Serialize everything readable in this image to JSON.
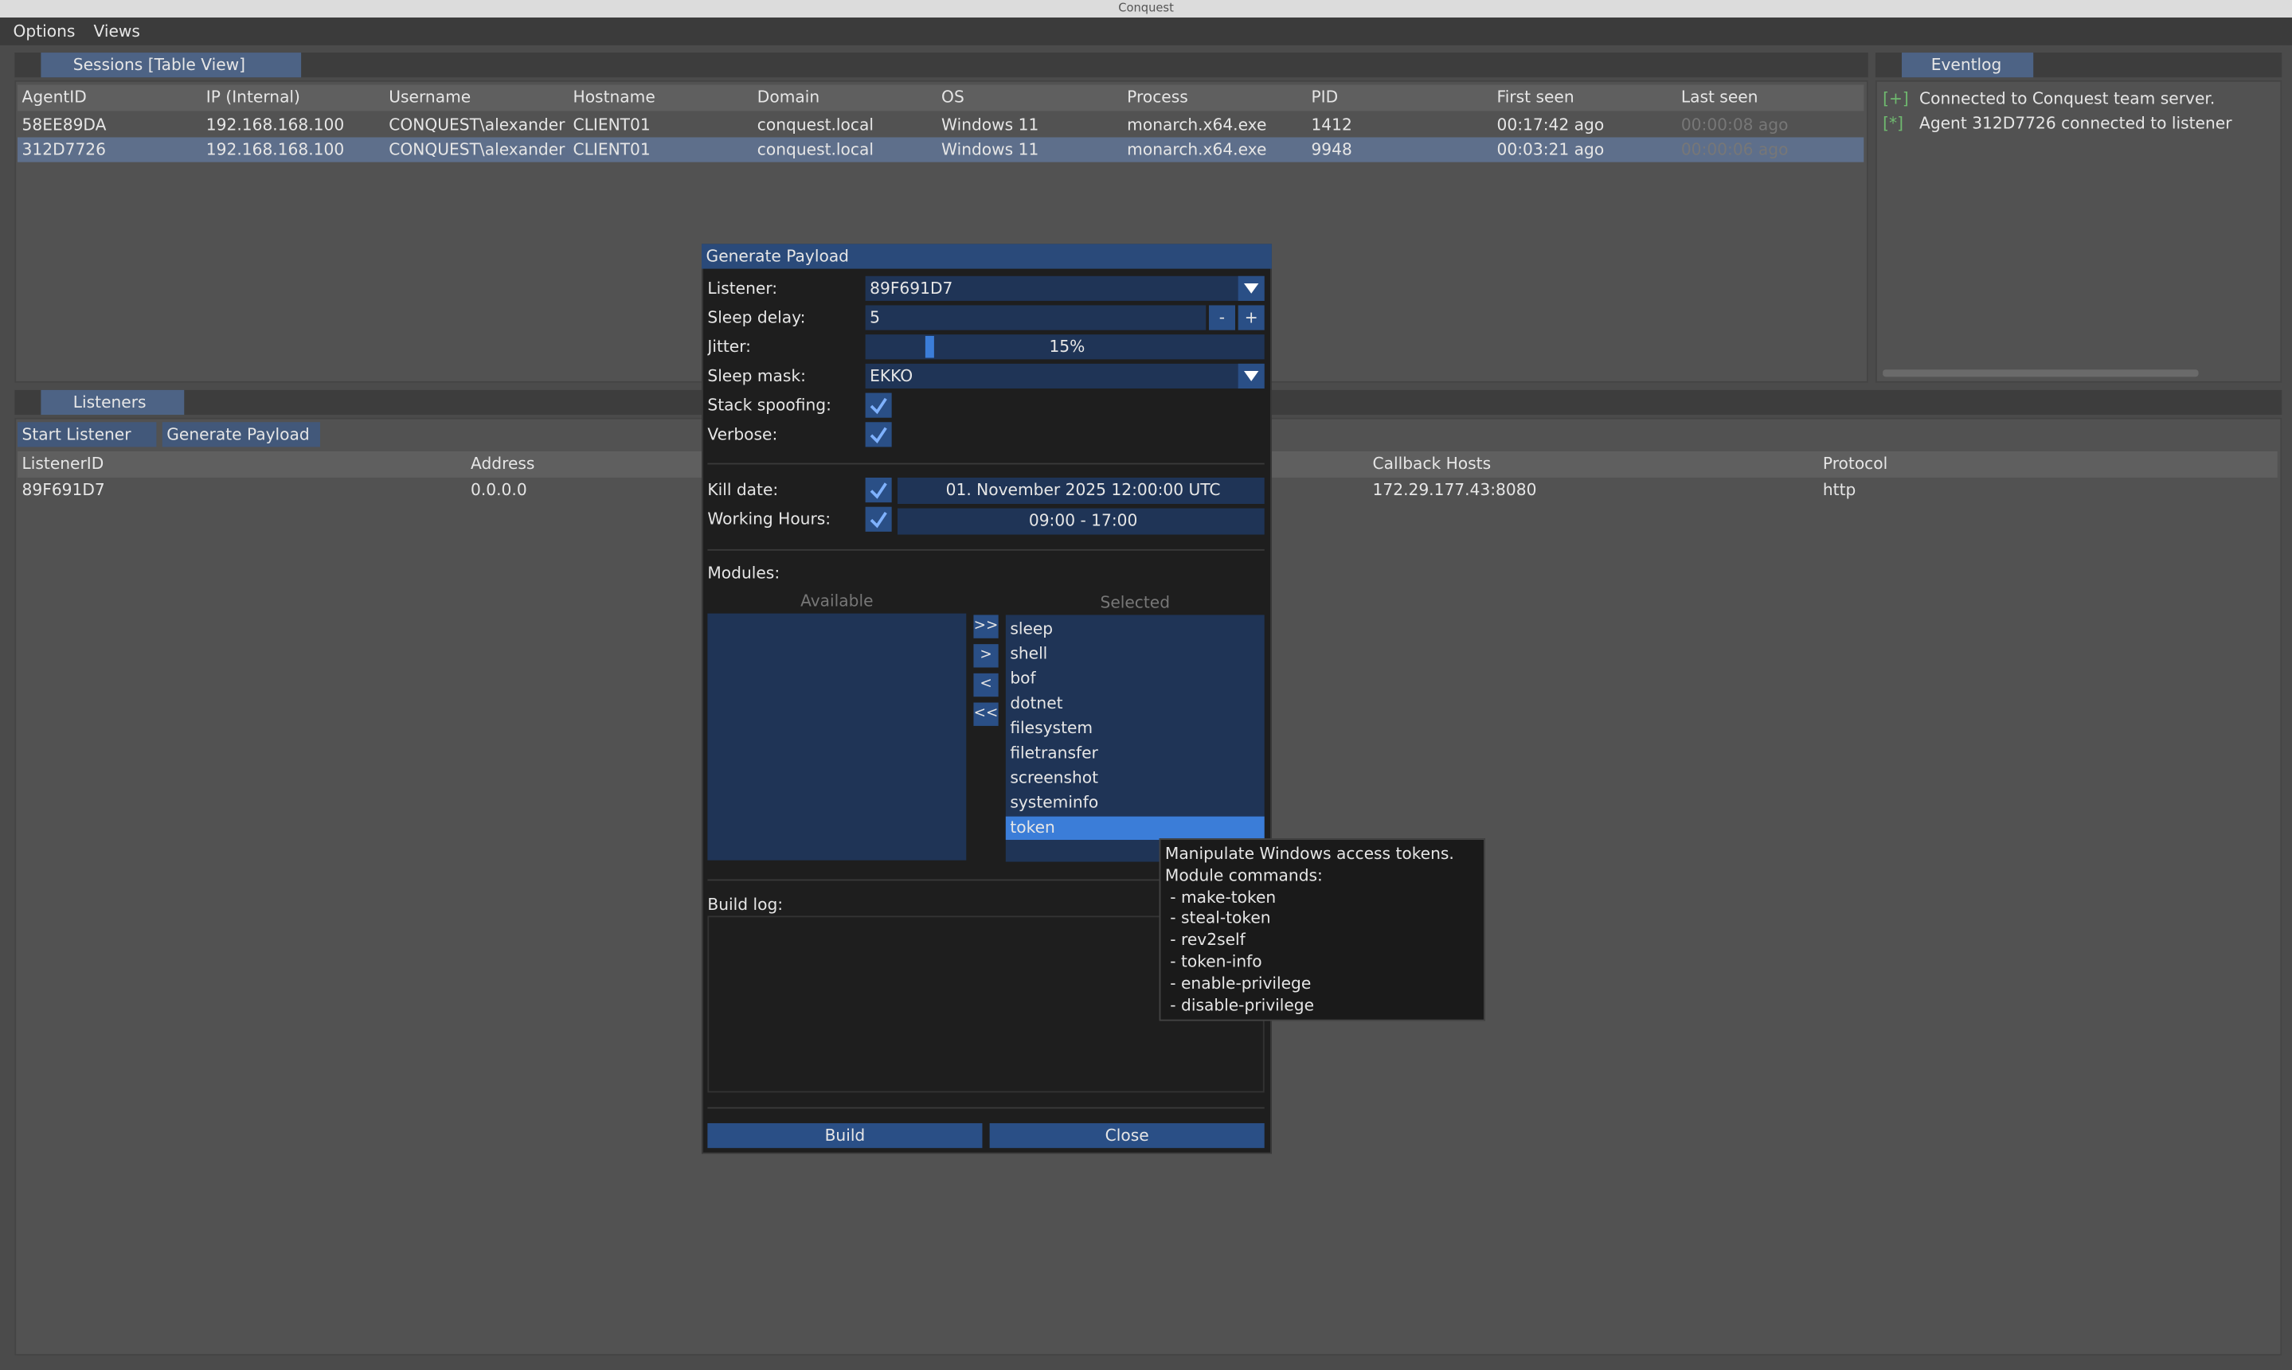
{
  "window": {
    "title": "Conquest"
  },
  "menu": [
    "Options",
    "Views"
  ],
  "sessions": {
    "tab": "Sessions [Table View]",
    "columns": [
      "AgentID",
      "IP (Internal)",
      "Username",
      "Hostname",
      "Domain",
      "OS",
      "Process",
      "PID",
      "First seen",
      "Last seen"
    ],
    "rows": [
      [
        "58EE89DA",
        "192.168.168.100",
        "CONQUEST\\alexander",
        "CLIENT01",
        "conquest.local",
        "Windows 11",
        "monarch.x64.exe",
        "1412",
        "00:17:42 ago",
        "00:00:08 ago"
      ],
      [
        "312D7726",
        "192.168.168.100",
        "CONQUEST\\alexander",
        "CLIENT01",
        "conquest.local",
        "Windows 11",
        "monarch.x64.exe",
        "9948",
        "00:03:21 ago",
        "00:00:06 ago"
      ]
    ]
  },
  "eventlog": {
    "tab": "Eventlog",
    "lines": [
      {
        "prefix": "[+]",
        "text": "Connected to Conquest team server."
      },
      {
        "prefix": "[*]",
        "text": "Agent 312D7726 connected to listener"
      }
    ]
  },
  "listeners": {
    "tab": "Listeners",
    "buttons": [
      "Start Listener",
      "Generate Payload"
    ],
    "columns": [
      "ListenerID",
      "Address",
      "Callback Hosts",
      "Protocol"
    ],
    "rows": [
      [
        "89F691D7",
        "0.0.0.0",
        "172.29.177.43:8080",
        "http"
      ]
    ]
  },
  "dialog": {
    "title": "Generate Payload",
    "listener": {
      "label": "Listener:",
      "value": "89F691D7"
    },
    "sleep_delay": {
      "label": "Sleep delay:",
      "value": "5",
      "decrement": "-",
      "increment": "+"
    },
    "jitter": {
      "label": "Jitter:",
      "value": "15%"
    },
    "sleep_mask": {
      "label": "Sleep mask:",
      "value": "EKKO"
    },
    "stack_spoofing": {
      "label": "Stack spoofing:"
    },
    "verbose": {
      "label": "Verbose:"
    },
    "kill_date": {
      "label": "Kill date:",
      "value": "01. November 2025 12:00:00 UTC"
    },
    "working_hours": {
      "label": "Working Hours:",
      "value": "09:00 - 17:00"
    },
    "modules": {
      "label": "Modules:",
      "available_label": "Available",
      "selected_label": "Selected",
      "move_buttons": [
        ">>",
        ">",
        "<",
        "<<"
      ],
      "selected": [
        "sleep",
        "shell",
        "bof",
        "dotnet",
        "filesystem",
        "filetransfer",
        "screenshot",
        "systeminfo",
        "token"
      ]
    },
    "build_log": {
      "label": "Build log:"
    },
    "buttons": [
      "Build",
      "Close"
    ]
  },
  "tooltip": {
    "lines": [
      "Manipulate Windows access tokens.",
      "Module commands:",
      " - make-token",
      " - steal-token",
      " - rev2self",
      " - token-info",
      " - enable-privilege",
      " - disable-privilege"
    ]
  }
}
